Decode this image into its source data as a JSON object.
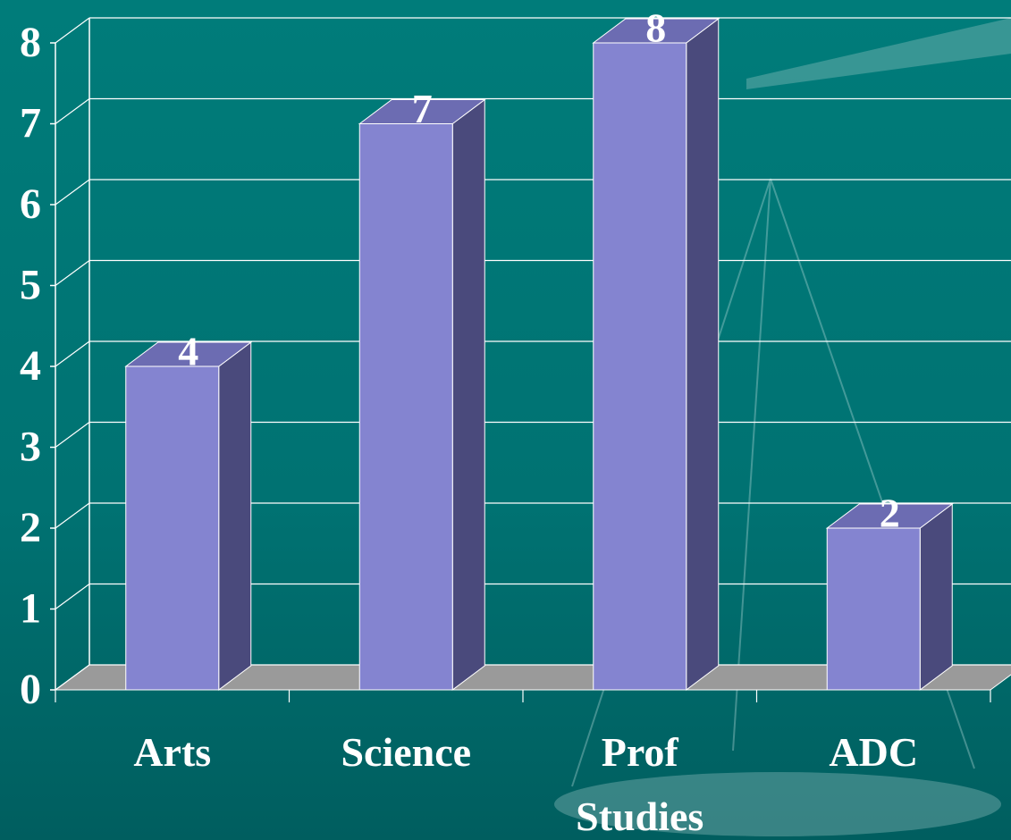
{
  "chart_data": {
    "type": "bar3d",
    "categories": [
      "Arts",
      "Science",
      "Prof Studies",
      "ADC"
    ],
    "values": [
      4,
      7,
      8,
      2
    ],
    "color": "#8484d0",
    "ylim": [
      0,
      8
    ],
    "yticks": [
      0,
      1,
      2,
      3,
      4,
      5,
      6,
      7,
      8
    ],
    "grid": true
  }
}
